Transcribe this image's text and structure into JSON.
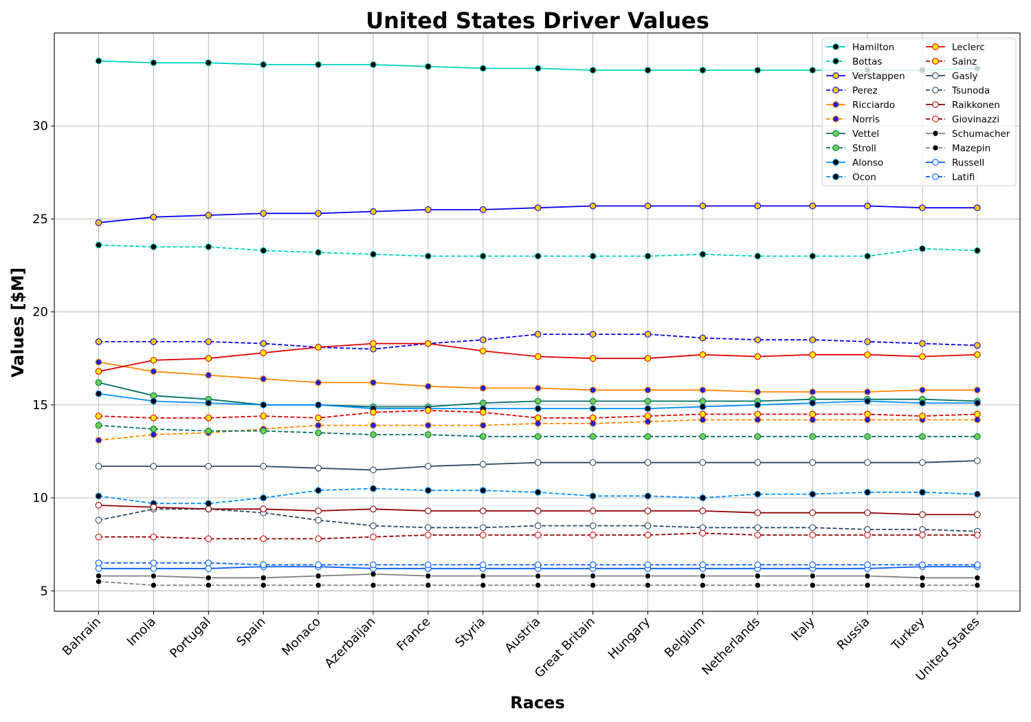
{
  "chart_data": {
    "type": "line",
    "title": "United States Driver Values",
    "xlabel": "Races",
    "ylabel": "Values [$M]",
    "ylim": [
      3.9,
      35
    ],
    "yticks": [
      5,
      10,
      15,
      20,
      25,
      30
    ],
    "grid": true,
    "legend_position": "top-right",
    "categories": [
      "Bahrain",
      "Imola",
      "Portugal",
      "Spain",
      "Monaco",
      "Azerbaijan",
      "France",
      "Styria",
      "Austria",
      "Great Britain",
      "Hungary",
      "Belgium",
      "Netherlands",
      "Italy",
      "Russia",
      "Turkey",
      "United States"
    ],
    "series": [
      {
        "name": "Hamilton",
        "color": "#00D2BE",
        "marker_fill": "#000000",
        "marker_edge": "#00D2BE",
        "dash": "solid",
        "values": [
          33.5,
          33.4,
          33.4,
          33.3,
          33.3,
          33.3,
          33.2,
          33.1,
          33.1,
          33.0,
          33.0,
          33.0,
          33.0,
          33.0,
          33.0,
          33.0,
          33.1
        ]
      },
      {
        "name": "Bottas",
        "color": "#00D2BE",
        "marker_fill": "#000000",
        "marker_edge": "#00D2BE",
        "dash": "dashed",
        "values": [
          23.6,
          23.5,
          23.5,
          23.3,
          23.2,
          23.1,
          23.0,
          23.0,
          23.0,
          23.0,
          23.0,
          23.1,
          23.0,
          23.0,
          23.0,
          23.4,
          23.3
        ]
      },
      {
        "name": "Verstappen",
        "color": "#0600EF",
        "marker_fill": "#FFC906",
        "marker_edge": "#0600EF",
        "dash": "solid",
        "values": [
          24.8,
          25.1,
          25.2,
          25.3,
          25.3,
          25.4,
          25.5,
          25.5,
          25.6,
          25.7,
          25.7,
          25.7,
          25.7,
          25.7,
          25.7,
          25.6,
          25.6
        ]
      },
      {
        "name": "Perez",
        "color": "#0600EF",
        "marker_fill": "#FFC906",
        "marker_edge": "#0600EF",
        "dash": "dashed",
        "values": [
          18.4,
          18.4,
          18.4,
          18.3,
          18.1,
          18.0,
          18.3,
          18.5,
          18.8,
          18.8,
          18.8,
          18.6,
          18.5,
          18.5,
          18.4,
          18.3,
          18.2
        ]
      },
      {
        "name": "Ricciardo",
        "color": "#FF8700",
        "marker_fill": "#1F1FDE",
        "marker_edge": "#FF8700",
        "dash": "solid",
        "values": [
          17.3,
          16.8,
          16.6,
          16.4,
          16.2,
          16.2,
          16.0,
          15.9,
          15.9,
          15.8,
          15.8,
          15.8,
          15.7,
          15.7,
          15.7,
          15.8,
          15.8
        ]
      },
      {
        "name": "Norris",
        "color": "#FF8700",
        "marker_fill": "#1F1FDE",
        "marker_edge": "#FF8700",
        "dash": "dashed",
        "values": [
          13.1,
          13.4,
          13.5,
          13.7,
          13.9,
          13.9,
          13.9,
          13.9,
          14.0,
          14.0,
          14.1,
          14.2,
          14.2,
          14.2,
          14.2,
          14.2,
          14.2
        ]
      },
      {
        "name": "Vettel",
        "color": "#006F62",
        "marker_fill": "#6CD34B",
        "marker_edge": "#006F62",
        "dash": "solid",
        "values": [
          16.2,
          15.5,
          15.3,
          15.0,
          15.0,
          14.9,
          14.9,
          15.1,
          15.2,
          15.2,
          15.2,
          15.2,
          15.2,
          15.3,
          15.3,
          15.3,
          15.2
        ]
      },
      {
        "name": "Stroll",
        "color": "#006F62",
        "marker_fill": "#6CD34B",
        "marker_edge": "#006F62",
        "dash": "dashed",
        "values": [
          13.9,
          13.7,
          13.6,
          13.6,
          13.5,
          13.4,
          13.4,
          13.3,
          13.3,
          13.3,
          13.3,
          13.3,
          13.3,
          13.3,
          13.3,
          13.3,
          13.3
        ]
      },
      {
        "name": "Alonso",
        "color": "#0090FF",
        "marker_fill": "#000000",
        "marker_edge": "#0090FF",
        "dash": "solid",
        "values": [
          15.6,
          15.2,
          15.1,
          15.0,
          15.0,
          14.8,
          14.8,
          14.8,
          14.8,
          14.8,
          14.8,
          14.9,
          15.0,
          15.1,
          15.2,
          15.1,
          15.1
        ]
      },
      {
        "name": "Ocon",
        "color": "#0090FF",
        "marker_fill": "#000000",
        "marker_edge": "#0090FF",
        "dash": "dashed",
        "values": [
          10.1,
          9.7,
          9.7,
          10.0,
          10.4,
          10.5,
          10.4,
          10.4,
          10.3,
          10.1,
          10.1,
          10.0,
          10.2,
          10.2,
          10.3,
          10.3,
          10.2
        ]
      },
      {
        "name": "Leclerc",
        "color": "#DC0000",
        "marker_fill": "#FFF200",
        "marker_edge": "#DC0000",
        "dash": "solid",
        "values": [
          16.8,
          17.4,
          17.5,
          17.8,
          18.1,
          18.3,
          18.3,
          17.9,
          17.6,
          17.5,
          17.5,
          17.7,
          17.6,
          17.7,
          17.7,
          17.6,
          17.7
        ]
      },
      {
        "name": "Sainz",
        "color": "#DC0000",
        "marker_fill": "#FFF200",
        "marker_edge": "#DC0000",
        "dash": "dashed",
        "values": [
          14.4,
          14.3,
          14.3,
          14.4,
          14.3,
          14.6,
          14.7,
          14.6,
          14.3,
          14.3,
          14.4,
          14.5,
          14.5,
          14.5,
          14.5,
          14.4,
          14.5
        ]
      },
      {
        "name": "Gasly",
        "color": "#2B4562",
        "marker_fill": "#FFFFFF",
        "marker_edge": "#2B4562",
        "dash": "solid",
        "values": [
          11.7,
          11.7,
          11.7,
          11.7,
          11.6,
          11.5,
          11.7,
          11.8,
          11.9,
          11.9,
          11.9,
          11.9,
          11.9,
          11.9,
          11.9,
          11.9,
          12.0
        ]
      },
      {
        "name": "Tsunoda",
        "color": "#2B4562",
        "marker_fill": "#FFFFFF",
        "marker_edge": "#2B4562",
        "dash": "dashed",
        "values": [
          8.8,
          9.4,
          9.4,
          9.2,
          8.8,
          8.5,
          8.4,
          8.4,
          8.5,
          8.5,
          8.5,
          8.4,
          8.4,
          8.4,
          8.3,
          8.3,
          8.2
        ]
      },
      {
        "name": "Raikkonen",
        "color": "#900000",
        "marker_fill": "#FFFFFF",
        "marker_edge": "#900000",
        "dash": "solid",
        "values": [
          9.6,
          9.5,
          9.4,
          9.4,
          9.3,
          9.4,
          9.3,
          9.3,
          9.3,
          9.3,
          9.3,
          9.3,
          9.2,
          9.2,
          9.2,
          9.1,
          9.1
        ]
      },
      {
        "name": "Giovinazzi",
        "color": "#900000",
        "marker_fill": "#FFFFFF",
        "marker_edge": "#DC0000",
        "dash": "dashed",
        "values": [
          7.9,
          7.9,
          7.8,
          7.8,
          7.8,
          7.9,
          8.0,
          8.0,
          8.0,
          8.0,
          8.0,
          8.1,
          8.0,
          8.0,
          8.0,
          8.0,
          8.0
        ]
      },
      {
        "name": "Schumacher",
        "color": "#808080",
        "marker_fill": "#000000",
        "marker_edge": "#FFFFFF",
        "dash": "solid",
        "values": [
          5.8,
          5.8,
          5.7,
          5.7,
          5.8,
          5.9,
          5.8,
          5.8,
          5.8,
          5.8,
          5.8,
          5.8,
          5.8,
          5.8,
          5.8,
          5.7,
          5.7
        ]
      },
      {
        "name": "Mazepin",
        "color": "#808080",
        "marker_fill": "#000000",
        "marker_edge": "#FFFFFF",
        "dash": "dashed",
        "values": [
          5.5,
          5.3,
          5.3,
          5.3,
          5.3,
          5.3,
          5.3,
          5.3,
          5.3,
          5.3,
          5.3,
          5.3,
          5.3,
          5.3,
          5.3,
          5.3,
          5.3
        ]
      },
      {
        "name": "Russell",
        "color": "#005AFF",
        "marker_fill": "#FFFFFF",
        "marker_edge": "#005AFF",
        "dash": "solid",
        "values": [
          6.2,
          6.2,
          6.2,
          6.3,
          6.3,
          6.2,
          6.2,
          6.2,
          6.2,
          6.2,
          6.2,
          6.2,
          6.2,
          6.2,
          6.2,
          6.3,
          6.3
        ]
      },
      {
        "name": "Latifi",
        "color": "#005AFF",
        "marker_fill": "#FFFFFF",
        "marker_edge": "#005AFF",
        "dash": "dashed",
        "values": [
          6.5,
          6.5,
          6.5,
          6.4,
          6.4,
          6.4,
          6.4,
          6.4,
          6.4,
          6.4,
          6.4,
          6.4,
          6.4,
          6.4,
          6.4,
          6.4,
          6.4
        ]
      }
    ]
  }
}
